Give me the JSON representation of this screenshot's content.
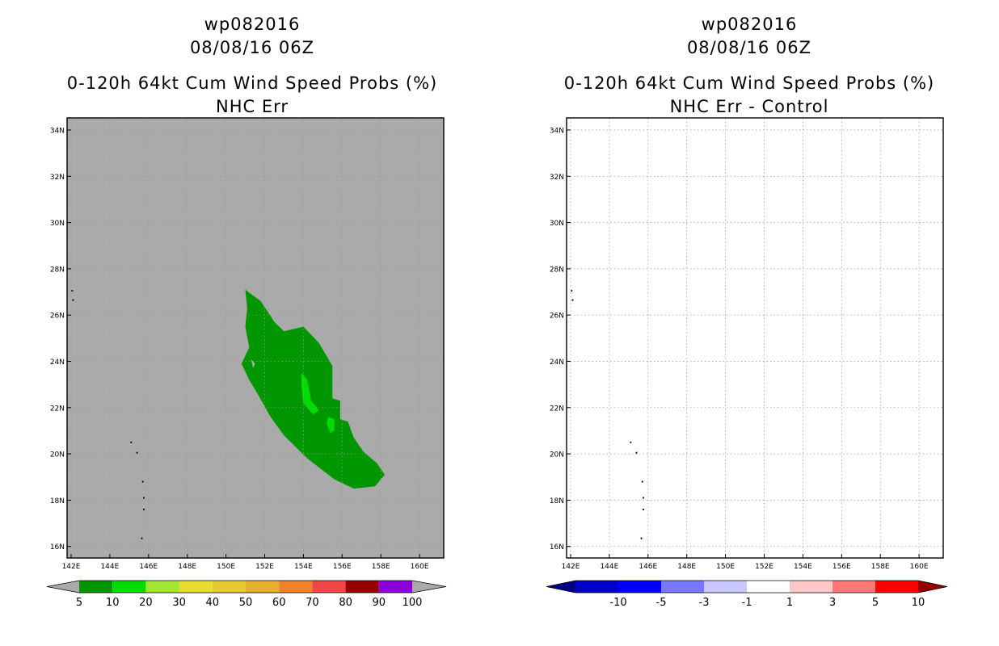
{
  "panels": [
    {
      "storm_id": "wp082016",
      "datetime": "08/08/16 06Z",
      "product": "0-120h 64kt Cum Wind Speed Probs (%)",
      "subtitle": "NHC Err",
      "background_color": "#aaaaaa",
      "colorbar_labels": [
        "5",
        "10",
        "20",
        "30",
        "40",
        "50",
        "60",
        "70",
        "80",
        "90",
        "100"
      ],
      "colorbar_colors": [
        "#009600",
        "#00dc00",
        "#a0e632",
        "#e6dc32",
        "#e6c832",
        "#e6af2d",
        "#f08228",
        "#f04646",
        "#960000",
        "#8c00dc"
      ]
    },
    {
      "storm_id": "wp082016",
      "datetime": "08/08/16 06Z",
      "product": "0-120h 64kt Cum Wind Speed Probs (%)",
      "subtitle": "NHC Err - Control",
      "background_color": "#ffffff",
      "colorbar_labels": [
        "-10",
        "-5",
        "-3",
        "-1",
        "1",
        "3",
        "5",
        "10"
      ],
      "colorbar_colors": [
        "#0000c8",
        "#0000ff",
        "#7878ff",
        "#c8c8ff",
        "#ffffff",
        "#ffc8c8",
        "#ff7878",
        "#ff0000",
        "#960000"
      ],
      "colorbar_end_colors": [
        "#000082",
        "#780000"
      ]
    }
  ],
  "map": {
    "lat_ticks": [
      "34N",
      "32N",
      "30N",
      "28N",
      "26N",
      "24N",
      "22N",
      "20N",
      "18N",
      "16N"
    ],
    "lon_ticks": [
      "142E",
      "144E",
      "146E",
      "148E",
      "150E",
      "152E",
      "154E",
      "156E",
      "158E",
      "160E"
    ],
    "lat_values": [
      34,
      32,
      30,
      28,
      26,
      24,
      22,
      20,
      18,
      16
    ],
    "lon_values": [
      142,
      144,
      146,
      148,
      150,
      152,
      154,
      156,
      158,
      160
    ]
  },
  "chart_data": {
    "type": "map",
    "title": "0-120h 64kt Cum Wind Speed Probs (%)",
    "region": {
      "lon": [
        142,
        161.5
      ],
      "lat": [
        15.5,
        34.5
      ]
    },
    "probability_areas": [
      {
        "level": "5-10%",
        "color": "#009600",
        "extent_lon": [
          151,
          158
        ],
        "extent_lat": [
          18.5,
          27
        ]
      },
      {
        "level": "10-20%",
        "color": "#00dc00",
        "extent_lon": [
          153.5,
          156
        ],
        "extent_lat": [
          21,
          23.5
        ]
      }
    ],
    "difference_field": "all values between -1 and 1"
  }
}
